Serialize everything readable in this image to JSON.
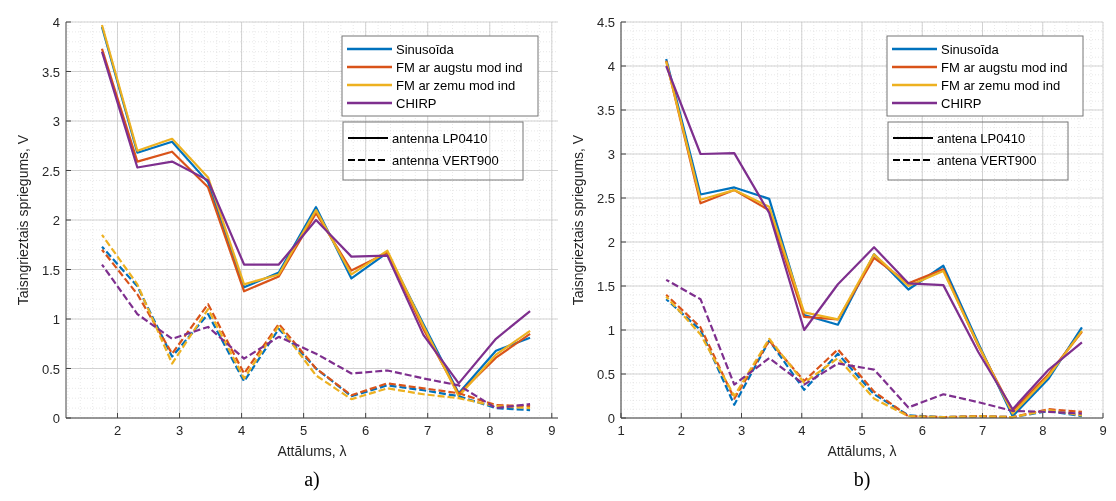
{
  "chart_data": [
    {
      "type": "line",
      "title": "a)",
      "xlabel": "Attālums, λ",
      "ylabel": "Taisngrieztais spriegums, V",
      "x": [
        1.75,
        2.32,
        2.88,
        3.46,
        4.04,
        4.6,
        5.2,
        5.77,
        6.35,
        6.93,
        7.5,
        8.1,
        8.65
      ],
      "xlim": [
        1.17,
        9.1
      ],
      "xticks": [
        2,
        3,
        4,
        5,
        6,
        7,
        8,
        9
      ],
      "ylim": [
        0,
        4
      ],
      "yticks": [
        0,
        0.5,
        1,
        1.5,
        2,
        2.5,
        3,
        3.5,
        4
      ],
      "grid": true,
      "legend": "top right",
      "line_style": "solid",
      "annotations": [
        "antenna LP0410",
        "antenna VERT900"
      ],
      "series": [
        {
          "name": "Sinusoīda",
          "color": "#0072bd",
          "values": [
            3.95,
            2.68,
            2.79,
            2.38,
            1.32,
            1.47,
            2.13,
            1.41,
            1.67,
            0.95,
            0.25,
            0.68,
            0.81
          ]
        },
        {
          "name": "FM ar augstu mod ind",
          "color": "#d95319",
          "values": [
            3.73,
            2.59,
            2.69,
            2.33,
            1.28,
            1.43,
            2.07,
            1.49,
            1.67,
            0.9,
            0.24,
            0.61,
            0.85
          ]
        },
        {
          "name": "FM ar zemu mod ind",
          "color": "#edb120",
          "values": [
            3.97,
            2.7,
            2.82,
            2.43,
            1.35,
            1.45,
            2.1,
            1.45,
            1.69,
            0.93,
            0.22,
            0.64,
            0.88
          ]
        },
        {
          "name": "CHIRP",
          "color": "#7e2f8e",
          "values": [
            3.7,
            2.53,
            2.59,
            2.4,
            1.55,
            1.55,
            2.0,
            1.63,
            1.64,
            0.84,
            0.35,
            0.8,
            1.08
          ]
        },
        {
          "color": "#0072bd",
          "line_style": "dashed",
          "values": [
            1.73,
            1.33,
            0.62,
            1.05,
            0.37,
            0.9,
            0.5,
            0.22,
            0.33,
            0.28,
            0.22,
            0.1,
            0.08
          ]
        },
        {
          "color": "#d95319",
          "line_style": "dashed",
          "values": [
            1.7,
            1.25,
            0.65,
            1.15,
            0.45,
            0.95,
            0.5,
            0.23,
            0.35,
            0.3,
            0.25,
            0.13,
            0.12
          ]
        },
        {
          "color": "#edb120",
          "line_style": "dashed",
          "values": [
            1.85,
            1.35,
            0.55,
            1.1,
            0.4,
            0.93,
            0.43,
            0.19,
            0.3,
            0.24,
            0.2,
            0.12,
            0.1
          ]
        },
        {
          "color": "#7e2f8e",
          "line_style": "dashed",
          "values": [
            1.55,
            1.05,
            0.8,
            0.92,
            0.6,
            0.82,
            0.65,
            0.45,
            0.48,
            0.4,
            0.33,
            0.1,
            0.14
          ]
        }
      ]
    },
    {
      "type": "line",
      "title": "b)",
      "xlabel": "Attālums, λ",
      "ylabel": "Taisngrieztais spriegums, V",
      "x": [
        1.75,
        2.32,
        2.88,
        3.46,
        4.04,
        4.6,
        5.2,
        5.77,
        6.35,
        6.93,
        7.5,
        8.1,
        8.65
      ],
      "xlim": [
        1,
        9
      ],
      "xticks": [
        1,
        2,
        3,
        4,
        5,
        6,
        7,
        8,
        9
      ],
      "ylim": [
        0,
        4.5
      ],
      "yticks": [
        0,
        0.5,
        1,
        1.5,
        2,
        2.5,
        3,
        3.5,
        4,
        4.5
      ],
      "grid": true,
      "legend": "top right",
      "line_style": "solid",
      "annotations": [
        "antena LP0410",
        "antena VERT900"
      ],
      "series": [
        {
          "name": "Sinusoīda",
          "color": "#0072bd",
          "values": [
            4.08,
            2.54,
            2.62,
            2.49,
            1.17,
            1.06,
            1.86,
            1.46,
            1.73,
            0.85,
            0.02,
            0.45,
            1.03
          ]
        },
        {
          "name": "FM ar augstu mod ind",
          "color": "#d95319",
          "values": [
            4.06,
            2.44,
            2.59,
            2.36,
            1.15,
            1.12,
            1.82,
            1.53,
            1.69,
            0.82,
            0.08,
            0.5,
            0.98
          ]
        },
        {
          "name": "FM ar zemu mod ind",
          "color": "#edb120",
          "values": [
            4.05,
            2.48,
            2.59,
            2.4,
            1.2,
            1.12,
            1.86,
            1.5,
            1.67,
            0.83,
            0.05,
            0.48,
            0.99
          ]
        },
        {
          "name": "CHIRP",
          "color": "#7e2f8e",
          "values": [
            4.0,
            3.0,
            3.01,
            2.33,
            1.0,
            1.52,
            1.94,
            1.53,
            1.51,
            0.75,
            0.1,
            0.55,
            0.86
          ]
        },
        {
          "color": "#0072bd",
          "line_style": "dashed",
          "values": [
            1.35,
            1.0,
            0.15,
            0.88,
            0.32,
            0.73,
            0.27,
            0.03,
            0.01,
            0.02,
            0.01,
            0.08,
            0.02
          ]
        },
        {
          "color": "#d95319",
          "line_style": "dashed",
          "values": [
            1.4,
            1.03,
            0.22,
            0.88,
            0.42,
            0.78,
            0.3,
            0.02,
            0.01,
            0.02,
            0.01,
            0.1,
            0.07
          ]
        },
        {
          "color": "#edb120",
          "line_style": "dashed",
          "values": [
            1.38,
            0.95,
            0.25,
            0.9,
            0.4,
            0.68,
            0.22,
            0.02,
            0.01,
            0.02,
            0.01,
            0.09,
            0.03
          ]
        },
        {
          "color": "#7e2f8e",
          "line_style": "dashed",
          "values": [
            1.57,
            1.35,
            0.38,
            0.68,
            0.38,
            0.62,
            0.55,
            0.12,
            0.27,
            0.18,
            0.08,
            0.07,
            0.05
          ]
        }
      ]
    }
  ]
}
